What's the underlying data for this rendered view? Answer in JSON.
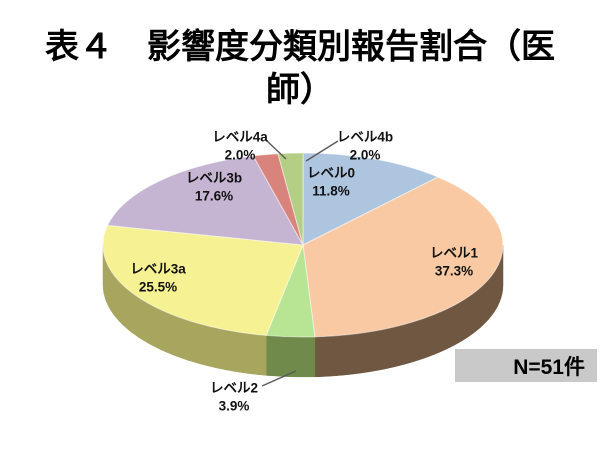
{
  "title": {
    "full": "表４　影響度分類別報告割合（医師）",
    "line1": "表４　影響度分類別報告割合（医",
    "line2": "師）"
  },
  "note_box": {
    "text": "N=51件",
    "bg_color": "#c9c9c9"
  },
  "chart_data": {
    "type": "pie",
    "style": "3d",
    "title": "表４　影響度分類別報告割合（医師）",
    "sample_size_label": "N=51件",
    "start_angle_deg": 0,
    "direction": "clockwise",
    "legend": "none (labels on/near slices)",
    "slices": [
      {
        "label": "レベル0",
        "value": 11.8,
        "pct_label": "11.8%",
        "color": "#aec5e0",
        "side_color": "#6d7b8c"
      },
      {
        "label": "レベル1",
        "value": 37.3,
        "pct_label": "37.3%",
        "color": "#f8c9a2",
        "side_color": "#6f5741"
      },
      {
        "label": "レベル2",
        "value": 3.9,
        "pct_label": "3.9%",
        "color": "#b7e593",
        "side_color": "#6f8a4a"
      },
      {
        "label": "レベル3a",
        "value": 25.5,
        "pct_label": "25.5%",
        "color": "#f6f192",
        "side_color": "#a8a55e"
      },
      {
        "label": "レベル3b",
        "value": 17.6,
        "pct_label": "17.6%",
        "color": "#c5b4d2",
        "side_color": "#7b7083"
      },
      {
        "label": "レベル4a",
        "value": 2.0,
        "pct_label": "2.0%",
        "color": "#d9837d",
        "side_color": "#88524e"
      },
      {
        "label": "レベル4b",
        "value": 2.0,
        "pct_label": "2.0%",
        "color": "#b4cf85",
        "side_color": "#708153"
      }
    ]
  }
}
